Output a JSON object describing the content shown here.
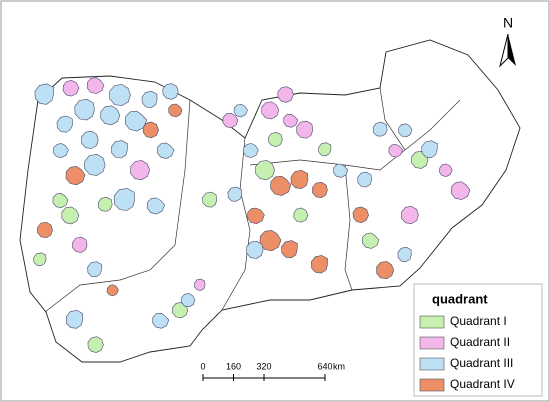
{
  "north_label": "N",
  "legend": {
    "title": "quadrant",
    "items": [
      {
        "name": "Quadrant I",
        "color": "#c6f0b0"
      },
      {
        "name": "Quadrant II",
        "color": "#f2b6ea"
      },
      {
        "name": "Quadrant III",
        "color": "#bde0f5"
      },
      {
        "name": "Quadrant IV",
        "color": "#ec8f67"
      }
    ]
  },
  "scale_bar": {
    "ticks": [
      0,
      160,
      320,
      640
    ],
    "unit": "km"
  }
}
